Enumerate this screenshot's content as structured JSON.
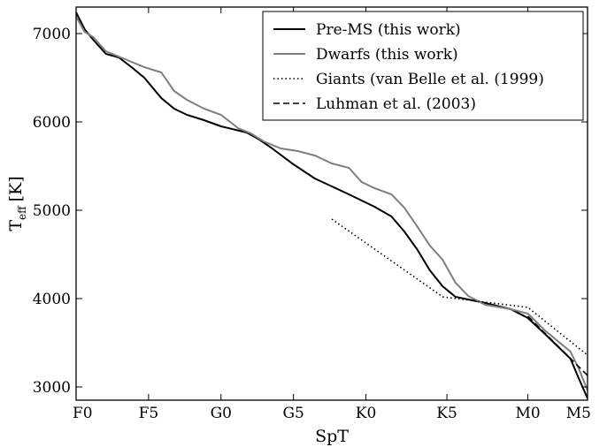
{
  "chart_data": {
    "type": "line",
    "xlabel": "SpT",
    "ylabel": "T",
    "ylabel_sub": "eff",
    "ylabel_unit": "[K]",
    "xlim": [
      0,
      60
    ],
    "ylim": [
      2850,
      7300
    ],
    "x_ticks": [
      {
        "value": 0,
        "label": "F0"
      },
      {
        "value": 8.5,
        "label": "F5"
      },
      {
        "value": 17,
        "label": "G0"
      },
      {
        "value": 25.5,
        "label": "G5"
      },
      {
        "value": 34,
        "label": "K0"
      },
      {
        "value": 43.5,
        "label": "K5"
      },
      {
        "value": 53,
        "label": "M0"
      },
      {
        "value": 60,
        "label": "M5"
      }
    ],
    "y_ticks": [
      3000,
      4000,
      5000,
      6000,
      7000
    ],
    "legend_position": "top-right",
    "series": [
      {
        "name": "Pre-MS (this work)",
        "color": "#000000",
        "style": "solid",
        "x": [
          0,
          1,
          2,
          3.5,
          5,
          6.5,
          8,
          10,
          11.5,
          13,
          15,
          17,
          20,
          21.5,
          23,
          25.5,
          28,
          30,
          32,
          33.5,
          35,
          37,
          38.5,
          40,
          41.5,
          43,
          44.5,
          46,
          48,
          51,
          53,
          55,
          58,
          59,
          60
        ],
        "y": [
          7240,
          7050,
          6930,
          6770,
          6730,
          6620,
          6500,
          6270,
          6150,
          6080,
          6020,
          5950,
          5880,
          5800,
          5700,
          5520,
          5360,
          5270,
          5180,
          5110,
          5040,
          4930,
          4760,
          4560,
          4320,
          4140,
          4020,
          3990,
          3950,
          3880,
          3780,
          3600,
          3320,
          3090,
          2870
        ]
      },
      {
        "name": "Dwarfs (this work)",
        "color": "#7f7f7f",
        "style": "solid",
        "x": [
          0,
          1,
          2,
          3.5,
          6,
          8,
          10,
          11.5,
          13,
          15,
          17,
          19,
          20.5,
          22,
          24,
          26,
          28,
          30,
          32,
          33.5,
          35,
          37,
          38.5,
          40,
          41.5,
          43,
          44.5,
          46,
          48,
          51,
          53,
          55,
          58,
          59,
          60
        ],
        "y": [
          7190,
          7020,
          6960,
          6800,
          6700,
          6620,
          6560,
          6350,
          6250,
          6150,
          6080,
          5930,
          5870,
          5780,
          5700,
          5670,
          5620,
          5530,
          5480,
          5320,
          5250,
          5180,
          5030,
          4820,
          4600,
          4440,
          4180,
          4030,
          3930,
          3880,
          3830,
          3640,
          3400,
          3200,
          2960
        ]
      },
      {
        "name": "Giants (van Belle et al. (1999)",
        "color": "#000000",
        "style": "dotted",
        "x": [
          30,
          43,
          53,
          60
        ],
        "y": [
          4900,
          4020,
          3900,
          3360
        ]
      },
      {
        "name": "Luhman et al. (2003)",
        "color": "#000000",
        "style": "dashed",
        "x": [
          53,
          60
        ],
        "y": [
          3800,
          3130
        ]
      }
    ]
  }
}
